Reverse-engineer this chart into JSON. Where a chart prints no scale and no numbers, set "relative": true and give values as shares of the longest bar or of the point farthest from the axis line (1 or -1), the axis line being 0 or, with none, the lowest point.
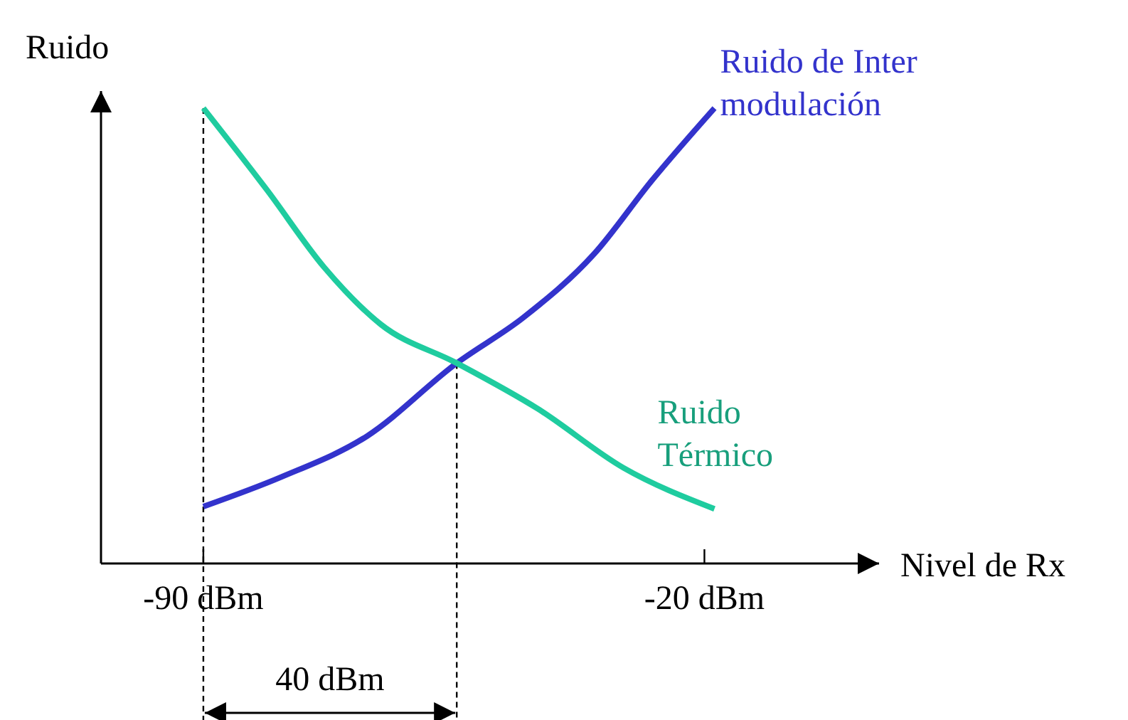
{
  "chart_data": {
    "type": "line",
    "relative": true,
    "ylabel": "Ruido",
    "xlabel": "Nivel de Rx",
    "xlim": [
      -104.3,
      4.4
    ],
    "xticks": [
      {
        "value": -90,
        "label": "-90 dBm"
      },
      {
        "value": -20,
        "label": "-20 dBm"
      }
    ],
    "series": [
      {
        "name": "Ruido de Inter modulación",
        "color": "#3333cc",
        "x": [
          -90,
          -79.1,
          -67.1,
          -54.6,
          -45.3,
          -35.4,
          -27.4,
          -18.6
        ],
        "values": [
          0.125,
          0.19,
          0.28,
          0.44,
          0.54,
          0.68,
          0.84,
          1.0
        ]
      },
      {
        "name": "Ruido Térmico",
        "color": "#1fcc9f",
        "x": [
          -90,
          -81.1,
          -73.1,
          -65.2,
          -54.6,
          -43.3,
          -31.3,
          -18.6
        ],
        "values": [
          1.0,
          0.82,
          0.65,
          0.525,
          0.44,
          0.34,
          0.21,
          0.12
        ]
      }
    ],
    "ref_lines": [
      {
        "axis": "x",
        "value": -90,
        "line_style": "dashed"
      },
      {
        "axis": "x",
        "value": -54.6,
        "line_style": "dashed"
      }
    ],
    "annotations": [
      "40 dBm"
    ],
    "legend": false,
    "line_style": "solid"
  }
}
